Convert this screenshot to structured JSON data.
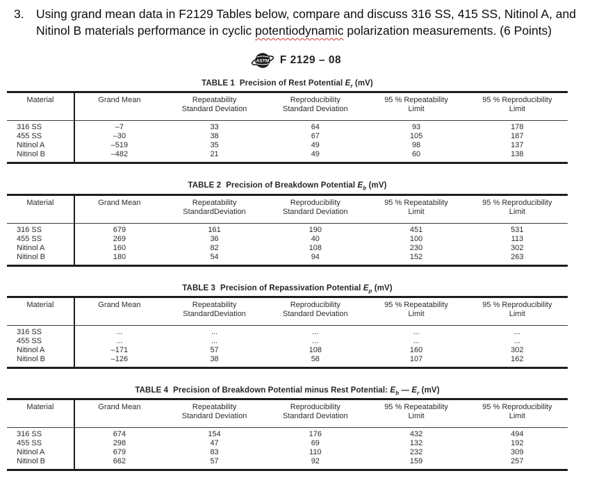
{
  "question": {
    "number": "3.",
    "text_before": "Using grand mean data in F2129 Tables below, compare and discuss 316 SS, 415 SS, Nitinol A, and Nitinol B materials performance in cyclic ",
    "flagged_word": "potentiodynamic",
    "text_after": " polarization measurements. (6 Points)",
    "flag_color": "#d0342c"
  },
  "header": {
    "logo": "ASTM",
    "doc_code": "F 2129 – 08"
  },
  "tables": [
    {
      "label": "TABLE 1",
      "caption": "Precision of Rest Potential",
      "formula": [
        {
          "base": "E",
          "sub": "r"
        }
      ],
      "unit": "(mV)",
      "columns": [
        [
          "Material",
          ""
        ],
        [
          "Grand Mean",
          ""
        ],
        [
          "Repeatability",
          "Standard Deviation"
        ],
        [
          "Reproducibility",
          "Standard Deviation"
        ],
        [
          "95 % Repeatability",
          "Limit"
        ],
        [
          "95 % Reproducibility",
          "Limit"
        ]
      ],
      "rows": [
        [
          "316 SS",
          "–7",
          "33",
          "64",
          "93",
          "178"
        ],
        [
          "455 SS",
          "–30",
          "38",
          "67",
          "105",
          "187"
        ],
        [
          "Nitinol A",
          "–519",
          "35",
          "49",
          "98",
          "137"
        ],
        [
          "Nitinol B",
          "–482",
          "21",
          "49",
          "60",
          "138"
        ]
      ]
    },
    {
      "label": "TABLE 2",
      "caption": "Precision of Breakdown Potential",
      "formula": [
        {
          "base": "E",
          "sub": "b"
        }
      ],
      "unit": "(mV)",
      "columns": [
        [
          "Material",
          ""
        ],
        [
          "Grand Mean",
          ""
        ],
        [
          "Repeatability",
          "StandardDeviation"
        ],
        [
          "Reproducibility",
          "Standard Deviation"
        ],
        [
          "95 % Repeatability",
          "Limit"
        ],
        [
          "95 % Reproducibility",
          "Limit"
        ]
      ],
      "rows": [
        [
          "316 SS",
          "679",
          "161",
          "190",
          "451",
          "531"
        ],
        [
          "455 SS",
          "269",
          "36",
          "40",
          "100",
          "113"
        ],
        [
          "Nitinol A",
          "160",
          "82",
          "108",
          "230",
          "302"
        ],
        [
          "Nitinol B",
          "180",
          "54",
          "94",
          "152",
          "263"
        ]
      ]
    },
    {
      "label": "TABLE 3",
      "caption": "Precision of Repassivation Potential",
      "formula": [
        {
          "base": "E",
          "sub": "p"
        }
      ],
      "unit": "(mV)",
      "columns": [
        [
          "Material",
          ""
        ],
        [
          "Grand Mean",
          ""
        ],
        [
          "Repeatability",
          "StandardDeviation"
        ],
        [
          "Reproducibility",
          "Standard Deviation"
        ],
        [
          "95 % Repeatability",
          "Limit"
        ],
        [
          "95 % Reproducibility",
          "Limit"
        ]
      ],
      "rows": [
        [
          "316 SS",
          "...",
          "...",
          "...",
          "...",
          "..."
        ],
        [
          "455 SS",
          "...",
          "...",
          "...",
          "...",
          "..."
        ],
        [
          "Nitinol A",
          "–171",
          "57",
          "108",
          "160",
          "302"
        ],
        [
          "Nitinol B",
          "–126",
          "38",
          "58",
          "107",
          "162"
        ]
      ]
    },
    {
      "label": "TABLE 4",
      "caption": "Precision of Breakdown Potential minus Rest Potential:",
      "formula": [
        {
          "base": "E",
          "sub": "b"
        },
        {
          "join": " — "
        },
        {
          "base": "E",
          "sub": "r"
        }
      ],
      "unit": "(mV)",
      "columns": [
        [
          "Material",
          ""
        ],
        [
          "Grand Mean",
          ""
        ],
        [
          "Repeatability",
          "Standard Deviation"
        ],
        [
          "Reproducibility",
          "Standard Deviation"
        ],
        [
          "95 % Repeatability",
          "Limit"
        ],
        [
          "95 % Reproducibility",
          "Limit"
        ]
      ],
      "rows": [
        [
          "316 SS",
          "674",
          "154",
          "176",
          "432",
          "494"
        ],
        [
          "455 SS",
          "298",
          "47",
          "69",
          "132",
          "192"
        ],
        [
          "Nitinol A",
          "679",
          "83",
          "110",
          "232",
          "309"
        ],
        [
          "Nitinol B",
          "662",
          "57",
          "92",
          "159",
          "257"
        ]
      ]
    }
  ]
}
